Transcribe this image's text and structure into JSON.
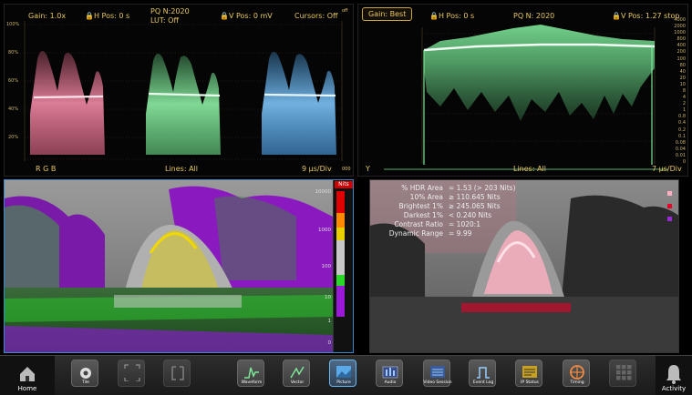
{
  "waveform_left": {
    "header": {
      "gain": "Gain: 1.0x",
      "h_pos": "H Pos: 0 s",
      "pq_line1": "PQ N:2020",
      "pq_line2": "LUT: Off",
      "v_pos": "V Pos: 0 mV",
      "cursors": "Cursors: Off",
      "corner": "off"
    },
    "footer": {
      "channels": "R G B",
      "lines": "Lines: All",
      "timebase": "9 µs/Div",
      "corner": "000"
    },
    "y_labels": [
      "100%",
      "80%",
      "60%",
      "40%",
      "20%"
    ],
    "colors": {
      "red": "#e86a8a",
      "green": "#6ee08a",
      "blue": "#4ea6ee"
    }
  },
  "waveform_right": {
    "header": {
      "gain_button": "Gain: Best",
      "h_pos": "H Pos: 0 s",
      "pq": "PQ N: 2020",
      "v_pos": "V Pos: 1.27 stop"
    },
    "footer": {
      "channel": "Y",
      "lines": "Lines: All",
      "timebase": "7 µs/Div"
    },
    "right_labels": [
      "4000",
      "2000",
      "1000",
      "800",
      "400",
      "200",
      "100",
      "80",
      "40",
      "20",
      "10",
      "8",
      "4",
      "2",
      "1",
      "0.8",
      "0.4",
      "0.2",
      "0.1",
      "0.08",
      "0.04",
      "0.01",
      "0"
    ],
    "color": "#7ee69a"
  },
  "picture_left": {
    "scale_title": "Nits",
    "scale_labels": [
      "10000",
      "1000",
      "100",
      "10",
      "1",
      "0"
    ],
    "zone_colors": [
      "#e10000",
      "#ff8a00",
      "#e8d000",
      "#c8c8c8",
      "#2ad82a",
      "#9a1ad8"
    ]
  },
  "picture_right": {
    "stats": [
      {
        "label": "% HDR Area",
        "value": "= 1.53 (> 203 Nits)"
      },
      {
        "label": "10% Area",
        "value": "≥ 110.645 Nits"
      },
      {
        "label": "Brightest 1%",
        "value": "≥ 245.065 Nits"
      },
      {
        "label": "Darkest 1%",
        "value": "< 0.240 Nits"
      },
      {
        "label": "Contrast Ratio",
        "value": "= 1020:1"
      },
      {
        "label": "Dynamic Range",
        "value": "= 9.99"
      }
    ],
    "legend_colors": [
      "#ffb0c0",
      "#e8002a",
      "#9a2ad8"
    ]
  },
  "toolbar": {
    "home_label": "Home",
    "activity_label": "Activity",
    "buttons": [
      {
        "label": "Tile",
        "icon": "gear-icon"
      },
      {
        "label": "",
        "icon": "fullscreen-icon"
      },
      {
        "label": "",
        "icon": "expand-icon"
      },
      {
        "label": "Waveform",
        "icon": "waveform-icon"
      },
      {
        "label": "Vector",
        "icon": "vector-icon"
      },
      {
        "label": "Picture",
        "icon": "picture-icon"
      },
      {
        "label": "Audio",
        "icon": "audio-icon"
      },
      {
        "label": "Video Session",
        "icon": "video-session-icon"
      },
      {
        "label": "Event Log",
        "icon": "event-log-icon"
      },
      {
        "label": "IP Status",
        "icon": "ip-status-icon"
      },
      {
        "label": "Timing",
        "icon": "timing-icon"
      },
      {
        "label": "",
        "icon": "grid-icon"
      }
    ]
  }
}
